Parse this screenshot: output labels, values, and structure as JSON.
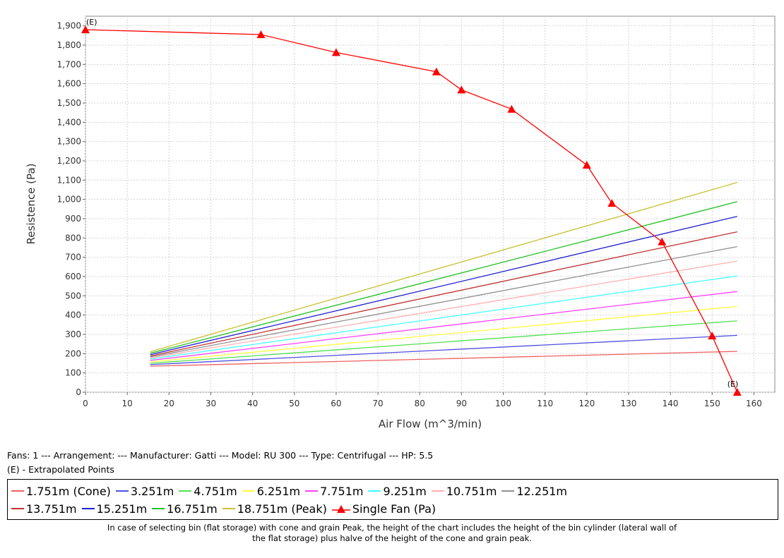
{
  "chart_data": {
    "type": "line",
    "xlabel": "Air Flow (m^3/min)",
    "ylabel": "Resistence (Pa)",
    "xlim": [
      0,
      165
    ],
    "ylim": [
      0,
      1950
    ],
    "x_ticks": [
      "0",
      "10",
      "20",
      "30",
      "40",
      "50",
      "60",
      "70",
      "80",
      "90",
      "100",
      "110",
      "120",
      "130",
      "140",
      "150",
      "160"
    ],
    "x_tick_values": [
      0,
      10,
      20,
      30,
      40,
      50,
      60,
      70,
      80,
      90,
      100,
      110,
      120,
      130,
      140,
      150,
      160
    ],
    "y_ticks": [
      "0",
      "100",
      "200",
      "300",
      "400",
      "500",
      "600",
      "700",
      "800",
      "900",
      "1,000",
      "1,100",
      "1,200",
      "1,300",
      "1,400",
      "1,500",
      "1,600",
      "1,700",
      "1,800",
      "1,900"
    ],
    "y_tick_values": [
      0,
      100,
      200,
      300,
      400,
      500,
      600,
      700,
      800,
      900,
      1000,
      1100,
      1200,
      1300,
      1400,
      1500,
      1600,
      1700,
      1800,
      1900
    ],
    "grid": true,
    "series": [
      {
        "name": "1.751m (Cone)",
        "color": "#f06060",
        "x": [
          15.5,
          156
        ],
        "y": [
          135,
          212
        ]
      },
      {
        "name": "3.251m",
        "color": "#5050e0",
        "x": [
          15.5,
          156
        ],
        "y": [
          143,
          295
        ]
      },
      {
        "name": "4.751m",
        "color": "#50e050",
        "x": [
          15.5,
          156
        ],
        "y": [
          150,
          370
        ]
      },
      {
        "name": "6.251m",
        "color": "#ffff40",
        "x": [
          15.5,
          156
        ],
        "y": [
          157,
          445
        ]
      },
      {
        "name": "7.751m",
        "color": "#ff40ff",
        "x": [
          15.5,
          156
        ],
        "y": [
          165,
          522
        ]
      },
      {
        "name": "9.251m",
        "color": "#40ffff",
        "x": [
          15.5,
          156
        ],
        "y": [
          172,
          603
        ]
      },
      {
        "name": "10.751m",
        "color": "#ffb0b0",
        "x": [
          15.5,
          156
        ],
        "y": [
          178,
          680
        ]
      },
      {
        "name": "12.251m",
        "color": "#909090",
        "x": [
          15.5,
          156
        ],
        "y": [
          183,
          755
        ]
      },
      {
        "name": "13.751m",
        "color": "#c03030",
        "x": [
          15.5,
          156
        ],
        "y": [
          188,
          832
        ]
      },
      {
        "name": "15.251m",
        "color": "#2020d0",
        "x": [
          15.5,
          156
        ],
        "y": [
          195,
          912
        ]
      },
      {
        "name": "16.751m",
        "color": "#20c020",
        "x": [
          15.5,
          156
        ],
        "y": [
          202,
          988
        ]
      },
      {
        "name": "18.751m (Peak)",
        "color": "#c8c030",
        "x": [
          15.5,
          156
        ],
        "y": [
          210,
          1088
        ]
      },
      {
        "name": "Single Fan (Pa)",
        "color": "#ff0000",
        "marker": "triangle",
        "x": [
          0,
          42,
          60,
          84,
          90,
          102,
          120,
          126,
          138,
          150,
          156
        ],
        "y": [
          1880,
          1855,
          1762,
          1662,
          1568,
          1468,
          1178,
          980,
          780,
          292,
          0
        ]
      }
    ],
    "annotations": [
      {
        "text": "(E)",
        "x": 0,
        "y": 1880
      },
      {
        "text": "(E)",
        "x": 156,
        "y": 0
      }
    ]
  },
  "info": {
    "fans_line": "Fans: 1 --- Arrangement:  --- Manufacturer: Gatti --- Model: RU 300 --- Type: Centrifugal --- HP: 5.5",
    "extrapolated_line": "(E) - Extrapolated Points"
  },
  "footnote": {
    "line1": "In case of selecting bin (flat storage) with cone and grain Peak, the height of the chart includes the height of the bin cylinder (lateral wall of",
    "line2": "the flat storage) plus halve of the height of the cone and grain peak."
  }
}
